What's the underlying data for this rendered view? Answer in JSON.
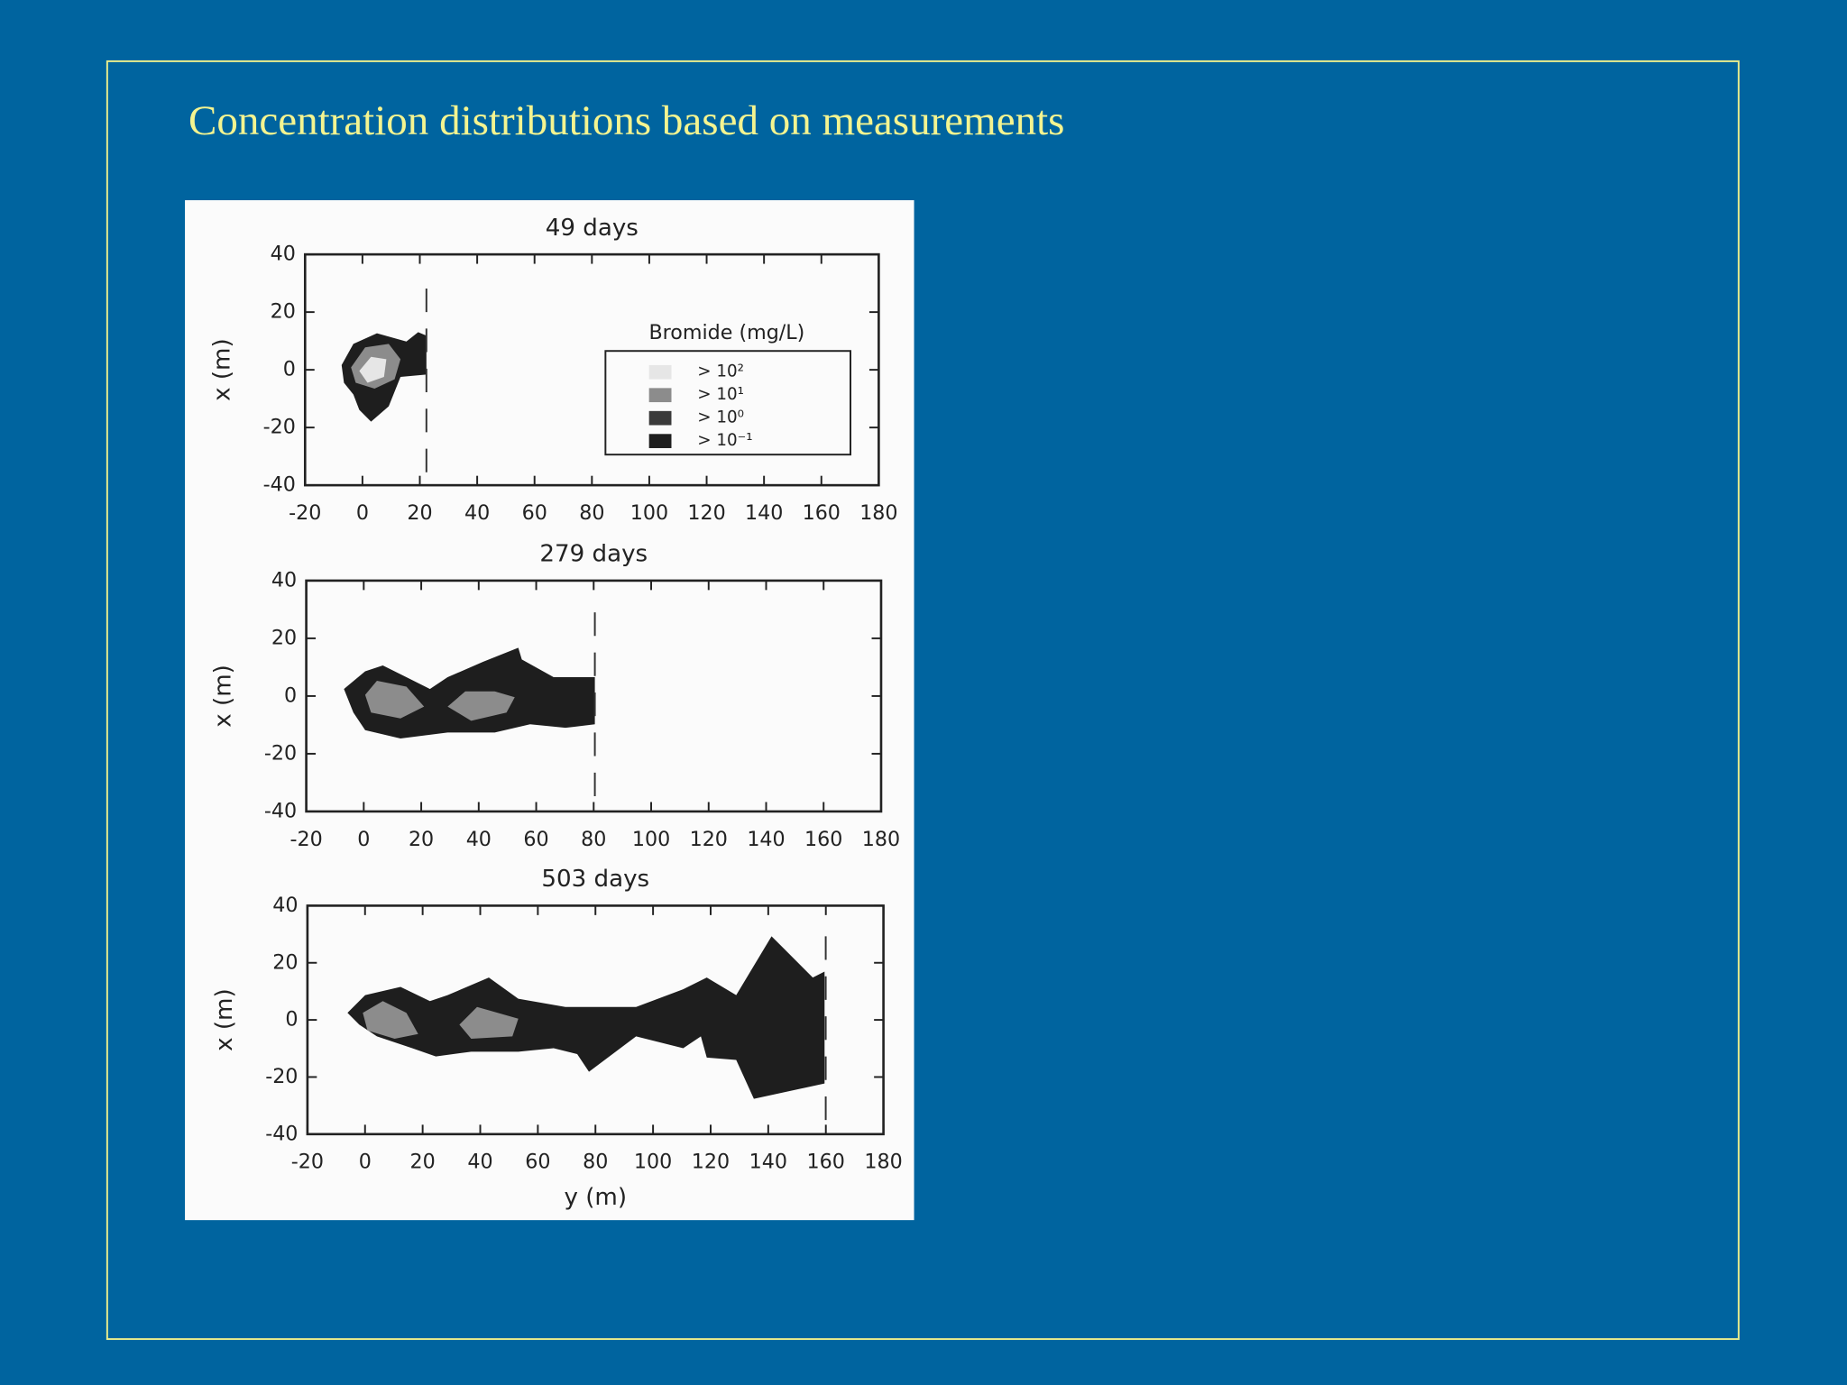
{
  "slide": {
    "title": "Concentration distributions based on measurements"
  },
  "chart_data": [
    {
      "type": "contour",
      "title": "49 days",
      "y_label": "x (m)",
      "xlim": [
        -20,
        180
      ],
      "xticks": [
        -20,
        0,
        20,
        40,
        60,
        80,
        100,
        120,
        140,
        160,
        180
      ],
      "ylim": [
        -40,
        40
      ],
      "yticks": [
        -40,
        -20,
        0,
        20,
        40
      ],
      "legend_title": "Bromide (mg/L)",
      "levels": [
        {
          "label": "> 10²",
          "color": "#e6e6e6"
        },
        {
          "label": "> 10¹",
          "color": "#8c8c8c"
        },
        {
          "label": "> 10⁰",
          "color": "#3a3a3a"
        },
        {
          "label": "> 10⁻¹",
          "color": "#1e1e1e"
        }
      ]
    },
    {
      "type": "contour",
      "title": "279 days",
      "y_label": "x (m)",
      "xlim": [
        -20,
        180
      ],
      "xticks": [
        -20,
        0,
        20,
        40,
        60,
        80,
        100,
        120,
        140,
        160,
        180
      ],
      "ylim": [
        -40,
        40
      ],
      "yticks": [
        -40,
        -20,
        0,
        20,
        40
      ]
    },
    {
      "type": "contour",
      "title": "503 days",
      "y_label": "x (m)",
      "x_label": "y (m)",
      "xlim": [
        -20,
        180
      ],
      "xticks": [
        -20,
        0,
        20,
        40,
        60,
        80,
        100,
        120,
        140,
        160,
        180
      ],
      "ylim": [
        -40,
        40
      ],
      "yticks": [
        -40,
        -20,
        0,
        20,
        40
      ]
    }
  ]
}
